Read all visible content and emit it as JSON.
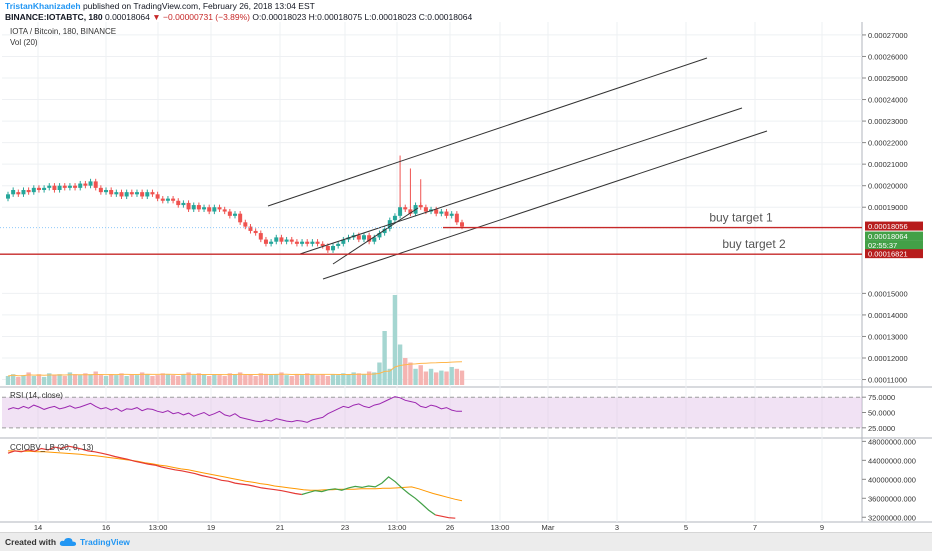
{
  "header": {
    "author": "TristanKhanizadeh",
    "published": "published on TradingView.com, February 26, 2018 13:04 EST",
    "symbol": "BINANCE:IOTABTC, 180",
    "last": "0.00018064",
    "change": "▼ −0.00000731 (−3.89%)",
    "ohlc": "O:0.00018023 H:0.00018075 L:0.00018023 C:0.00018064"
  },
  "legend": {
    "main": "IOTA / Bitcoin, 180, BINANCE",
    "vol": "Vol (20)",
    "rsi": "RSI (14, close)",
    "obv": "CCIOBV_LB (20, 0, 13)"
  },
  "colors": {
    "up": "#26a69a",
    "down": "#ef5350",
    "target_line": "#c62828",
    "rsi_line": "#9c27b0",
    "rsi_band": "#e1bee7",
    "obv_red": "#e53935",
    "obv_green": "#43a047",
    "obv_orange": "#ff9800",
    "channel": "#333333",
    "badge_green": "#43a047",
    "badge_red": "#b71c1c"
  },
  "chart_data": {
    "type": "candlestick",
    "x_labels": [
      "14",
      "16",
      "13:00",
      "19",
      "21",
      "23",
      "13:00",
      "26",
      "13:00",
      "Mar",
      "3",
      "5",
      "7",
      "9"
    ],
    "y_axis_main": [
      "0.00027000",
      "0.00026000",
      "0.00025000",
      "0.00024000",
      "0.00023000",
      "0.00022000",
      "0.00021000",
      "0.00020000",
      "0.00019000",
      "0.00015000",
      "0.00014000",
      "0.00013000",
      "0.00012000",
      "0.00011000"
    ],
    "y_axis_rsi": [
      "75.0000",
      "50.0000",
      "25.0000"
    ],
    "y_axis_obv": [
      "48000000.000",
      "44000000.000",
      "40000000.000",
      "36000000.000",
      "32000000.000"
    ],
    "price_badges": [
      {
        "label": "0.00018056",
        "kind": "red"
      },
      {
        "label": "0.00018064",
        "kind": "green"
      },
      {
        "label": "02:55:37",
        "kind": "green"
      },
      {
        "label": "0.00016821",
        "kind": "red"
      }
    ],
    "annotations": [
      "buy target 1",
      "buy target 2"
    ],
    "horizontal_lines": [
      0.00018056,
      0.00016821
    ],
    "price_range": [
      0.000107,
      0.000276
    ],
    "candles": [
      [
        0.000194,
        0.000196
      ],
      [
        0.000196,
        0.000198
      ],
      [
        0.000197,
        0.000196
      ],
      [
        0.000196,
        0.000198
      ],
      [
        0.000198,
        0.000197
      ],
      [
        0.000197,
        0.000199
      ],
      [
        0.000199,
        0.000198
      ],
      [
        0.000198,
        0.000199
      ],
      [
        0.000199,
        0.0002
      ],
      [
        0.0002,
        0.000198
      ],
      [
        0.000198,
        0.0002
      ],
      [
        0.0002,
        0.000199
      ],
      [
        0.000199,
        0.0002
      ],
      [
        0.0002,
        0.000199
      ],
      [
        0.000199,
        0.000201
      ],
      [
        0.000201,
        0.0002
      ],
      [
        0.0002,
        0.000202
      ],
      [
        0.000202,
        0.000199
      ],
      [
        0.000199,
        0.000197
      ],
      [
        0.000197,
        0.000198
      ],
      [
        0.000198,
        0.000196
      ],
      [
        0.000196,
        0.000197
      ],
      [
        0.000197,
        0.000195
      ],
      [
        0.000195,
        0.000197
      ],
      [
        0.000197,
        0.000196
      ],
      [
        0.000196,
        0.000197
      ],
      [
        0.000197,
        0.000195
      ],
      [
        0.000195,
        0.000197
      ],
      [
        0.000197,
        0.000196
      ],
      [
        0.000196,
        0.000194
      ],
      [
        0.000194,
        0.000193
      ],
      [
        0.000193,
        0.000194
      ],
      [
        0.000194,
        0.000193
      ],
      [
        0.000193,
        0.000191
      ],
      [
        0.000191,
        0.000192
      ],
      [
        0.000192,
        0.000189
      ],
      [
        0.000189,
        0.000191
      ],
      [
        0.000191,
        0.000189
      ],
      [
        0.000189,
        0.00019
      ],
      [
        0.00019,
        0.000188
      ],
      [
        0.000188,
        0.00019
      ],
      [
        0.00019,
        0.000189
      ],
      [
        0.000189,
        0.000188
      ],
      [
        0.000188,
        0.000186
      ],
      [
        0.000186,
        0.000187
      ],
      [
        0.000187,
        0.000183
      ],
      [
        0.000183,
        0.000181
      ],
      [
        0.000181,
        0.000179
      ],
      [
        0.000179,
        0.000178
      ],
      [
        0.000178,
        0.000175
      ],
      [
        0.000175,
        0.000173
      ],
      [
        0.000173,
        0.000174
      ],
      [
        0.000174,
        0.000176
      ],
      [
        0.000176,
        0.000174
      ],
      [
        0.000174,
        0.000175
      ],
      [
        0.000175,
        0.000174
      ],
      [
        0.000174,
        0.000173
      ],
      [
        0.000173,
        0.000174
      ],
      [
        0.000174,
        0.000173
      ],
      [
        0.000173,
        0.000174
      ],
      [
        0.000174,
        0.000173
      ],
      [
        0.000173,
        0.000172
      ],
      [
        0.000172,
        0.00017
      ],
      [
        0.00017,
        0.000172
      ],
      [
        0.000172,
        0.000173
      ],
      [
        0.000173,
        0.000175
      ],
      [
        0.000175,
        0.000176
      ],
      [
        0.000176,
        0.000177
      ],
      [
        0.000177,
        0.000175
      ],
      [
        0.000175,
        0.000177
      ],
      [
        0.000177,
        0.000174
      ],
      [
        0.000174,
        0.000176
      ],
      [
        0.000176,
        0.000178
      ],
      [
        0.000178,
        0.00018
      ],
      [
        0.00018,
        0.000184
      ],
      [
        0.000184,
        0.000186
      ],
      [
        0.000186,
        0.00019
      ],
      [
        0.00019,
        0.000189
      ],
      [
        0.000189,
        0.000187
      ],
      [
        0.000187,
        0.000191
      ],
      [
        0.000191,
        0.00019
      ],
      [
        0.00019,
        0.000188
      ],
      [
        0.000188,
        0.000189
      ],
      [
        0.000189,
        0.000187
      ],
      [
        0.000187,
        0.000188
      ],
      [
        0.000188,
        0.000186
      ],
      [
        0.000186,
        0.000187
      ],
      [
        0.000187,
        0.000183
      ],
      [
        0.000183,
        0.000181
      ]
    ],
    "volume": [
      10,
      12,
      9,
      11,
      14,
      10,
      12,
      9,
      13,
      11,
      12,
      10,
      14,
      12,
      11,
      13,
      12,
      15,
      11,
      10,
      12,
      11,
      13,
      10,
      12,
      11,
      14,
      12,
      10,
      11,
      13,
      12,
      11,
      10,
      12,
      14,
      11,
      13,
      12,
      10,
      12,
      11,
      10,
      13,
      12,
      14,
      11,
      12,
      10,
      13,
      12,
      11,
      12,
      14,
      11,
      10,
      12,
      11,
      13,
      12,
      11,
      12,
      10,
      12,
      11,
      13,
      12,
      14,
      13,
      12,
      15,
      14,
      25,
      60,
      18,
      100,
      45,
      30,
      25,
      18,
      22,
      15,
      18,
      14,
      16,
      15,
      20,
      18,
      16
    ],
    "rsi": [
      55,
      58,
      56,
      60,
      57,
      62,
      59,
      55,
      58,
      60,
      56,
      58,
      61,
      57,
      59,
      62,
      65,
      60,
      56,
      58,
      54,
      57,
      52,
      56,
      55,
      58,
      53,
      56,
      55,
      52,
      50,
      53,
      48,
      50,
      46,
      49,
      44,
      47,
      50,
      45,
      48,
      52,
      46,
      44,
      48,
      42,
      40,
      38,
      36,
      35,
      38,
      36,
      40,
      38,
      36,
      35,
      37,
      36,
      34,
      38,
      40,
      42,
      48,
      52,
      56,
      60,
      58,
      62,
      64,
      60,
      58,
      62,
      64,
      68,
      72,
      76,
      74,
      70,
      68,
      66,
      60,
      58,
      62,
      60,
      56,
      58,
      54,
      52,
      52
    ],
    "obv_red": [
      45.5,
      46,
      45.8,
      46.2,
      45.9,
      46.5,
      46.2,
      46.8,
      46.5,
      47,
      46.7,
      46.4,
      46,
      45.8,
      45.5,
      45.2,
      44.8,
      44.5,
      44.2,
      43.8,
      43.5,
      43.2,
      43,
      42.6,
      42.3,
      42,
      41.8,
      41.5,
      41.2,
      40.8,
      40.5,
      40.2,
      39.8,
      39.6,
      39.2,
      39,
      38.8,
      38.5,
      38.2,
      38,
      37.8,
      37.6,
      37.3,
      37,
      36.8
    ],
    "obv_green": [
      36.8,
      37.2,
      37.6,
      37.4,
      37.8,
      38,
      37.7,
      38.2,
      38.5,
      38.3,
      38.6,
      38.4,
      39.2,
      40.5,
      39.5,
      38.2,
      37,
      36,
      34.8,
      33.5,
      32.5
    ],
    "obv_red_end": [
      32.5,
      32.2,
      31.9,
      31.8
    ],
    "obv_orange": [
      46,
      46,
      45.9,
      45.9,
      45.8,
      45.8,
      45.7,
      45.6,
      45.5,
      45.4,
      45.3,
      45.1,
      45,
      44.8,
      44.6,
      44.4,
      44.2,
      44,
      43.8,
      43.5,
      43.3,
      43,
      42.8,
      42.5,
      42.2,
      42,
      41.7,
      41.4,
      41.1,
      40.8,
      40.5,
      40.2,
      39.9,
      39.6,
      39.4,
      39.1,
      38.9,
      38.6,
      38.4,
      38.2,
      38,
      37.8,
      37.7,
      37.7,
      37.8,
      37.8,
      37.9,
      37.9,
      37.9,
      38,
      38,
      38,
      38.1,
      38.1,
      38.2,
      38.3,
      38.4,
      38,
      37.5,
      37,
      36.6,
      36.2,
      35.8,
      35.5
    ]
  }
}
